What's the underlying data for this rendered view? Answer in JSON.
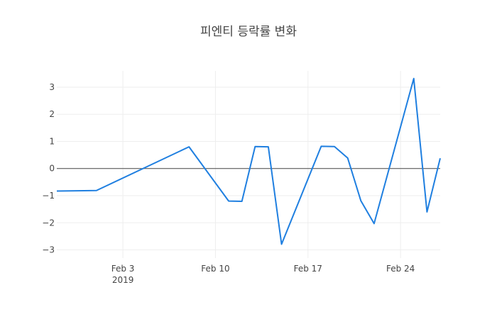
{
  "chart_data": {
    "type": "line",
    "title": "피엔티 등락률 변화",
    "xlabel": "",
    "ylabel": "",
    "x": [
      "2019-01-29",
      "2019-02-01",
      "2019-02-08",
      "2019-02-11",
      "2019-02-12",
      "2019-02-13",
      "2019-02-14",
      "2019-02-15",
      "2019-02-18",
      "2019-02-19",
      "2019-02-20",
      "2019-02-21",
      "2019-02-22",
      "2019-02-25",
      "2019-02-26",
      "2019-02-27"
    ],
    "series": [
      {
        "name": "",
        "values": [
          -0.83,
          -0.81,
          0.8,
          -1.2,
          -1.21,
          0.81,
          0.8,
          -2.79,
          0.82,
          0.81,
          0.39,
          -1.19,
          -2.03,
          3.32,
          -1.6,
          0.38
        ],
        "color": "#1f7fe0"
      }
    ],
    "x_range": [
      "2019-01-29",
      "2019-02-27"
    ],
    "ylim": [
      -3.3,
      3.6
    ],
    "x_ticks": [
      {
        "value": "2019-02-03",
        "label": "Feb 3",
        "sublabel": "2019"
      },
      {
        "value": "2019-02-10",
        "label": "Feb 10",
        "sublabel": ""
      },
      {
        "value": "2019-02-17",
        "label": "Feb 17",
        "sublabel": ""
      },
      {
        "value": "2019-02-24",
        "label": "Feb 24",
        "sublabel": ""
      }
    ],
    "y_ticks": [
      {
        "value": 3,
        "label": "3"
      },
      {
        "value": 2,
        "label": "2"
      },
      {
        "value": 1,
        "label": "1"
      },
      {
        "value": 0,
        "label": "0"
      },
      {
        "value": -1,
        "label": "−1"
      },
      {
        "value": -2,
        "label": "−2"
      },
      {
        "value": -3,
        "label": "−3"
      }
    ],
    "grid": true,
    "zero_line": true,
    "grid_color": "#eeeeee",
    "zero_line_color": "#444444"
  }
}
